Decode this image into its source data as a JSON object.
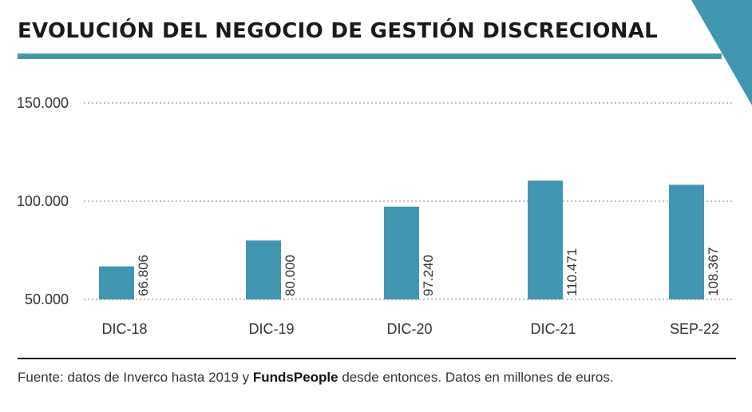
{
  "header": {
    "title": "EVOLUCIÓN DEL NEGOCIO DE GESTIÓN DISCRECIONAL"
  },
  "colors": {
    "accent": "#4197b1",
    "bar": "#4197b1",
    "grid": "#bdbdbd",
    "text": "#222222"
  },
  "chart_data": {
    "type": "bar",
    "categories": [
      "DIC-18",
      "DIC-19",
      "DIC-20",
      "DIC-21",
      "SEP-22"
    ],
    "values": [
      66806,
      80000,
      97240,
      110471,
      108367
    ],
    "value_labels": [
      "66.806",
      "80.000",
      "97.240",
      "110.471",
      "108.367"
    ],
    "ylim": [
      45000,
      150000
    ],
    "yticks": [
      {
        "value": 50000,
        "label": "50.000"
      },
      {
        "value": 100000,
        "label": "100.000"
      },
      {
        "value": 150000,
        "label": "150.000"
      }
    ],
    "grid": true,
    "title": "",
    "xlabel": "",
    "ylabel": ""
  },
  "footer": {
    "source_pre": "Fuente: datos de Inverco hasta 2019 y ",
    "source_brand": "FundsPeople",
    "source_post": " desde entonces. Datos en millones de euros."
  }
}
